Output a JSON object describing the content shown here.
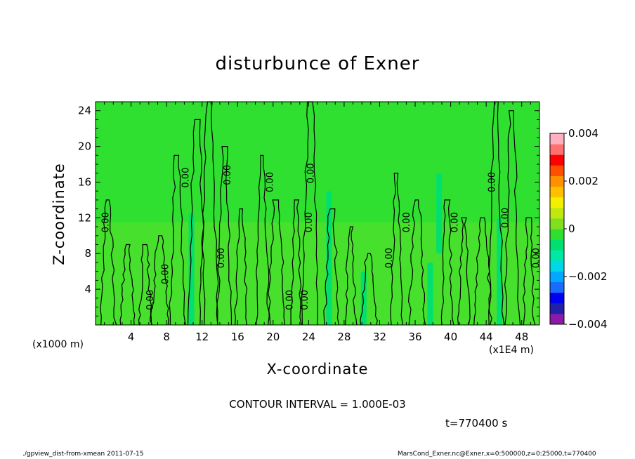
{
  "chart_data": {
    "type": "heatmap",
    "title": "disturbunce of Exner",
    "xlabel": "X-coordinate",
    "ylabel": "Z-coordinate",
    "x_unit_left": "(x1000 m)",
    "x_unit_right": "(x1E4 m)",
    "xlim": [
      0,
      50
    ],
    "ylim": [
      0,
      25
    ],
    "x_ticks": [
      "4",
      "8",
      "12",
      "16",
      "20",
      "24",
      "28",
      "32",
      "36",
      "40",
      "44",
      "48"
    ],
    "y_ticks": [
      "4",
      "8",
      "12",
      "16",
      "20",
      "24"
    ],
    "colorbar": {
      "range": [
        -0.004,
        0.004
      ],
      "tick_labels": [
        "0.004",
        "0.002",
        "0",
        "−0.002",
        "−0.004"
      ],
      "colors": [
        "#8b1aa8",
        "#2020a8",
        "#0000f0",
        "#1a6cff",
        "#00a8ff",
        "#00d8e8",
        "#00e8a8",
        "#00e070",
        "#30e030",
        "#80e020",
        "#c0e810",
        "#f0f000",
        "#ffc000",
        "#ff9000",
        "#ff5000",
        "#ff0000",
        "#ff7070",
        "#ffb0c0"
      ]
    },
    "contour_labels": [
      {
        "x": 1.2,
        "z": 11.5,
        "text": "0.00"
      },
      {
        "x": 6.2,
        "z": 2.8,
        "text": "0.00"
      },
      {
        "x": 7.9,
        "z": 5.7,
        "text": "0.00"
      },
      {
        "x": 10.2,
        "z": 16.5,
        "text": "0.00"
      },
      {
        "x": 14.2,
        "z": 7.5,
        "text": "0.00"
      },
      {
        "x": 14.9,
        "z": 16.8,
        "text": "0.00"
      },
      {
        "x": 19.7,
        "z": 16.0,
        "text": "0.00"
      },
      {
        "x": 21.9,
        "z": 2.8,
        "text": "0.00"
      },
      {
        "x": 23.6,
        "z": 2.8,
        "text": "0.00"
      },
      {
        "x": 24.1,
        "z": 11.5,
        "text": "0.00"
      },
      {
        "x": 24.3,
        "z": 17.0,
        "text": "0.00"
      },
      {
        "x": 33.1,
        "z": 7.5,
        "text": "0.00"
      },
      {
        "x": 35.1,
        "z": 11.5,
        "text": "0.00"
      },
      {
        "x": 40.5,
        "z": 11.5,
        "text": "0.00"
      },
      {
        "x": 44.7,
        "z": 16.0,
        "text": "0.00"
      },
      {
        "x": 46.2,
        "z": 12.0,
        "text": "0.00"
      },
      {
        "x": 49.7,
        "z": 7.5,
        "text": "0.00"
      }
    ]
  },
  "annotations": {
    "contour_interval": "CONTOUR INTERVAL = 1.000E-03",
    "timestamp": "t=770400 s",
    "footer_left": "./gpview_dist-from-xmean  2011-07-15",
    "footer_right": "MarsCond_Exner.nc@Exner,x=0:500000,z=0:25000,t=770400"
  }
}
